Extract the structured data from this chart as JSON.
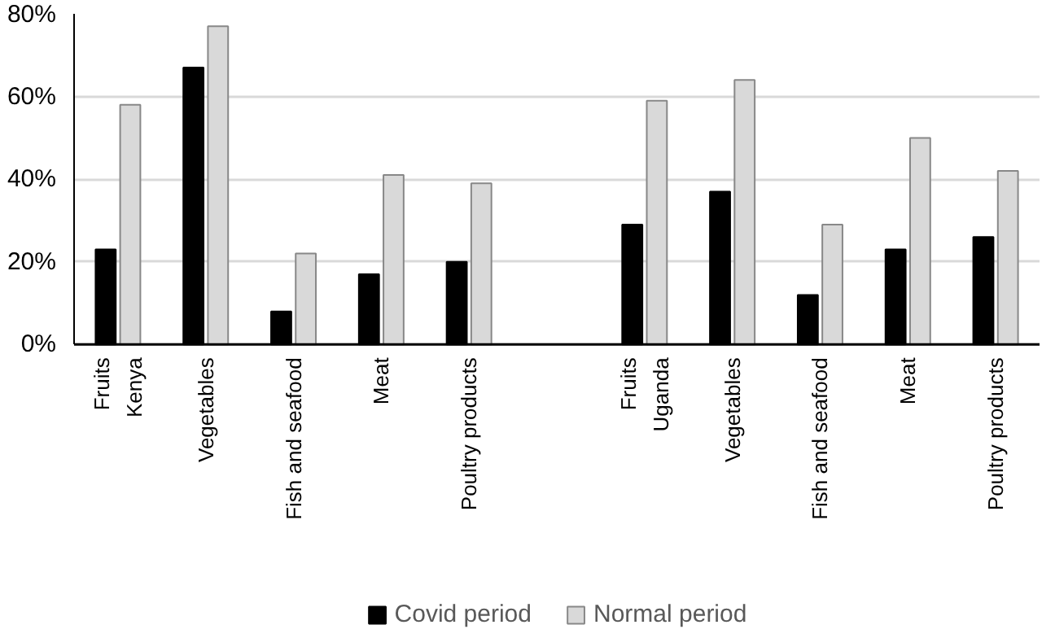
{
  "chart_data": {
    "type": "bar",
    "categories": [
      "Fruits\nKenya",
      "Vegetables",
      "Fish and seafood",
      "Meat",
      "Poultry products",
      null,
      "Fruits\nUganda",
      "Vegetables",
      "Fish and seafood",
      "Meat",
      "Poultry products"
    ],
    "series": [
      {
        "name": "Covid period",
        "color": "#000000",
        "values": [
          23,
          67,
          8,
          17,
          20,
          null,
          29,
          37,
          12,
          23,
          26
        ]
      },
      {
        "name": "Normal period",
        "color": "#d9d9d9",
        "values": [
          58,
          77,
          22,
          41,
          39,
          null,
          59,
          64,
          29,
          50,
          42
        ]
      }
    ],
    "ylim": [
      0,
      80
    ],
    "yticks": [
      {
        "value": 0,
        "label": "0%"
      },
      {
        "value": 20,
        "label": "20%"
      },
      {
        "value": 40,
        "label": "40%"
      },
      {
        "value": 60,
        "label": "60%"
      },
      {
        "value": 80,
        "label": "80%"
      }
    ],
    "grid": "y",
    "legend": "bottom"
  }
}
